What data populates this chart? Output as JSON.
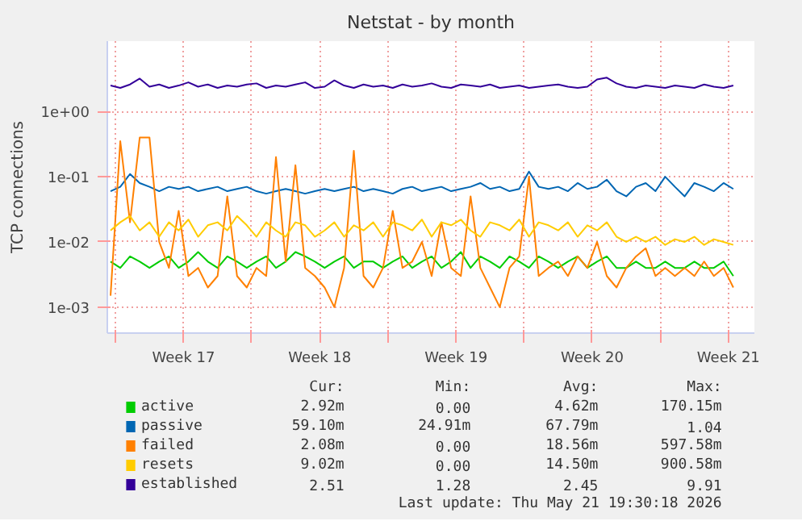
{
  "chart_data": {
    "type": "line",
    "title": "Netstat - by month",
    "ylabel": "TCP connections",
    "log": "y",
    "grid": true,
    "legend": "bottom",
    "line_style": "solid",
    "marker": "none",
    "xlim": [
      "2026-04-19T14:00",
      "2026-05-22T20:00"
    ],
    "xticks": [
      {
        "value": "2026-04-20",
        "label": null
      },
      {
        "value": "2026-04-23T12:00",
        "label": "Week 17"
      },
      {
        "value": "2026-04-27",
        "label": null
      },
      {
        "value": "2026-04-30T12:00",
        "label": "Week 18"
      },
      {
        "value": "2026-05-04",
        "label": null
      },
      {
        "value": "2026-05-07T12:00",
        "label": "Week 19"
      },
      {
        "value": "2026-05-11",
        "label": null
      },
      {
        "value": "2026-05-14T12:00",
        "label": "Week 20"
      },
      {
        "value": "2026-05-18",
        "label": null
      },
      {
        "value": "2026-05-21T12:00",
        "label": "Week 21"
      }
    ],
    "ylim": [
      0.0004,
      12
    ],
    "yticks": [
      {
        "value": 0.001,
        "label": "1e-03"
      },
      {
        "value": 0.01,
        "label": "1e-02"
      },
      {
        "value": 0.1,
        "label": "1e-01"
      },
      {
        "value": 1,
        "label": "1e+00"
      }
    ],
    "x": [
      "2026-04-19T18:00",
      "2026-04-20T06:00",
      "2026-04-20T18:00",
      "2026-04-21T06:00",
      "2026-04-21T18:00",
      "2026-04-22T06:00",
      "2026-04-22T18:00",
      "2026-04-23T06:00",
      "2026-04-23T18:00",
      "2026-04-24T06:00",
      "2026-04-24T18:00",
      "2026-04-25T06:00",
      "2026-04-25T18:00",
      "2026-04-26T06:00",
      "2026-04-26T18:00",
      "2026-04-27T06:00",
      "2026-04-27T18:00",
      "2026-04-28T06:00",
      "2026-04-28T18:00",
      "2026-04-29T06:00",
      "2026-04-29T18:00",
      "2026-04-30T06:00",
      "2026-04-30T18:00",
      "2026-05-01T06:00",
      "2026-05-01T18:00",
      "2026-05-02T06:00",
      "2026-05-02T18:00",
      "2026-05-03T06:00",
      "2026-05-03T18:00",
      "2026-05-04T06:00",
      "2026-05-04T18:00",
      "2026-05-05T06:00",
      "2026-05-05T18:00",
      "2026-05-06T06:00",
      "2026-05-06T18:00",
      "2026-05-07T06:00",
      "2026-05-07T18:00",
      "2026-05-08T06:00",
      "2026-05-08T18:00",
      "2026-05-09T06:00",
      "2026-05-09T18:00",
      "2026-05-10T06:00",
      "2026-05-10T18:00",
      "2026-05-11T06:00",
      "2026-05-11T18:00",
      "2026-05-12T06:00",
      "2026-05-12T18:00",
      "2026-05-13T06:00",
      "2026-05-13T18:00",
      "2026-05-14T06:00",
      "2026-05-14T18:00",
      "2026-05-15T06:00",
      "2026-05-15T18:00",
      "2026-05-16T06:00",
      "2026-05-16T18:00",
      "2026-05-17T06:00",
      "2026-05-17T18:00",
      "2026-05-18T06:00",
      "2026-05-18T18:00",
      "2026-05-19T06:00",
      "2026-05-19T18:00",
      "2026-05-20T06:00",
      "2026-05-20T18:00",
      "2026-05-21T06:00",
      "2026-05-21T18:00"
    ],
    "series": [
      {
        "name": "active",
        "color": "#00cc00",
        "values": [
          0.005,
          0.004,
          0.006,
          0.005,
          0.004,
          0.005,
          0.006,
          0.004,
          0.005,
          0.007,
          0.005,
          0.004,
          0.006,
          0.005,
          0.004,
          0.005,
          0.006,
          0.004,
          0.005,
          0.007,
          0.006,
          0.005,
          0.004,
          0.005,
          0.006,
          0.004,
          0.005,
          0.005,
          0.004,
          0.005,
          0.006,
          0.004,
          0.005,
          0.006,
          0.004,
          0.005,
          0.007,
          0.004,
          0.006,
          0.005,
          0.004,
          0.006,
          0.005,
          0.004,
          0.006,
          0.005,
          0.004,
          0.005,
          0.006,
          0.004,
          0.005,
          0.006,
          0.004,
          0.004,
          0.005,
          0.004,
          0.004,
          0.005,
          0.004,
          0.004,
          0.005,
          0.004,
          0.004,
          0.005,
          0.003
        ]
      },
      {
        "name": "passive",
        "color": "#0066b3",
        "values": [
          0.06,
          0.07,
          0.11,
          0.08,
          0.07,
          0.06,
          0.07,
          0.065,
          0.07,
          0.06,
          0.065,
          0.07,
          0.06,
          0.065,
          0.07,
          0.06,
          0.055,
          0.06,
          0.065,
          0.06,
          0.055,
          0.06,
          0.065,
          0.06,
          0.065,
          0.07,
          0.06,
          0.065,
          0.06,
          0.055,
          0.065,
          0.07,
          0.06,
          0.065,
          0.07,
          0.06,
          0.065,
          0.07,
          0.08,
          0.065,
          0.07,
          0.06,
          0.065,
          0.12,
          0.07,
          0.065,
          0.07,
          0.06,
          0.08,
          0.065,
          0.07,
          0.09,
          0.06,
          0.05,
          0.07,
          0.08,
          0.06,
          0.1,
          0.07,
          0.05,
          0.08,
          0.07,
          0.06,
          0.08,
          0.065
        ]
      },
      {
        "name": "failed",
        "color": "#ff8000",
        "values": [
          0.0015,
          0.35,
          0.02,
          0.4,
          0.4,
          0.01,
          0.004,
          0.03,
          0.003,
          0.004,
          0.002,
          0.003,
          0.05,
          0.003,
          0.002,
          0.004,
          0.003,
          0.2,
          0.005,
          0.15,
          0.004,
          0.003,
          0.002,
          0.001,
          0.004,
          0.25,
          0.003,
          0.002,
          0.004,
          0.03,
          0.004,
          0.005,
          0.01,
          0.003,
          0.02,
          0.004,
          0.003,
          0.05,
          0.004,
          0.002,
          0.001,
          0.004,
          0.006,
          0.1,
          0.003,
          0.004,
          0.005,
          0.003,
          0.006,
          0.004,
          0.01,
          0.003,
          0.002,
          0.004,
          0.006,
          0.008,
          0.003,
          0.004,
          0.003,
          0.004,
          0.003,
          0.005,
          0.003,
          0.004,
          0.002
        ]
      },
      {
        "name": "resets",
        "color": "#ffcc00",
        "values": [
          0.015,
          0.02,
          0.025,
          0.015,
          0.02,
          0.012,
          0.02,
          0.015,
          0.022,
          0.012,
          0.018,
          0.02,
          0.015,
          0.025,
          0.018,
          0.012,
          0.02,
          0.015,
          0.012,
          0.02,
          0.018,
          0.012,
          0.015,
          0.02,
          0.012,
          0.018,
          0.015,
          0.02,
          0.012,
          0.02,
          0.018,
          0.015,
          0.022,
          0.012,
          0.02,
          0.018,
          0.022,
          0.015,
          0.012,
          0.02,
          0.018,
          0.015,
          0.022,
          0.012,
          0.02,
          0.018,
          0.015,
          0.02,
          0.012,
          0.018,
          0.015,
          0.02,
          0.012,
          0.01,
          0.012,
          0.01,
          0.012,
          0.009,
          0.011,
          0.01,
          0.012,
          0.009,
          0.011,
          0.01,
          0.009
        ]
      },
      {
        "name": "established",
        "color": "#330099",
        "values": [
          2.5,
          2.3,
          2.6,
          3.2,
          2.4,
          2.6,
          2.3,
          2.5,
          2.8,
          2.4,
          2.6,
          2.3,
          2.5,
          2.4,
          2.6,
          2.7,
          2.3,
          2.5,
          2.4,
          2.6,
          2.8,
          2.3,
          2.4,
          3.0,
          2.5,
          2.3,
          2.6,
          2.4,
          2.5,
          2.3,
          2.6,
          2.4,
          2.5,
          2.7,
          2.4,
          2.3,
          2.6,
          2.5,
          2.4,
          2.6,
          2.3,
          2.4,
          2.5,
          2.3,
          2.4,
          2.5,
          2.6,
          2.4,
          2.3,
          2.4,
          3.1,
          3.3,
          2.7,
          2.4,
          2.3,
          2.5,
          2.4,
          2.3,
          2.5,
          2.4,
          2.3,
          2.6,
          2.4,
          2.3,
          2.5
        ]
      }
    ],
    "annotations": [
      "Cur:",
      "Min:",
      "Avg:",
      "Max:",
      "2.92m",
      "0.00",
      "4.62m",
      "170.15m",
      "59.10m",
      "24.91m",
      "67.79m",
      "1.04",
      "2.08m",
      "0.00",
      "18.56m",
      "597.58m",
      "9.02m",
      "0.00",
      "14.50m",
      "900.58m",
      "2.51",
      "1.28",
      "2.45",
      "9.91",
      "Last update: Thu May 21 19:30:18 2026"
    ]
  }
}
